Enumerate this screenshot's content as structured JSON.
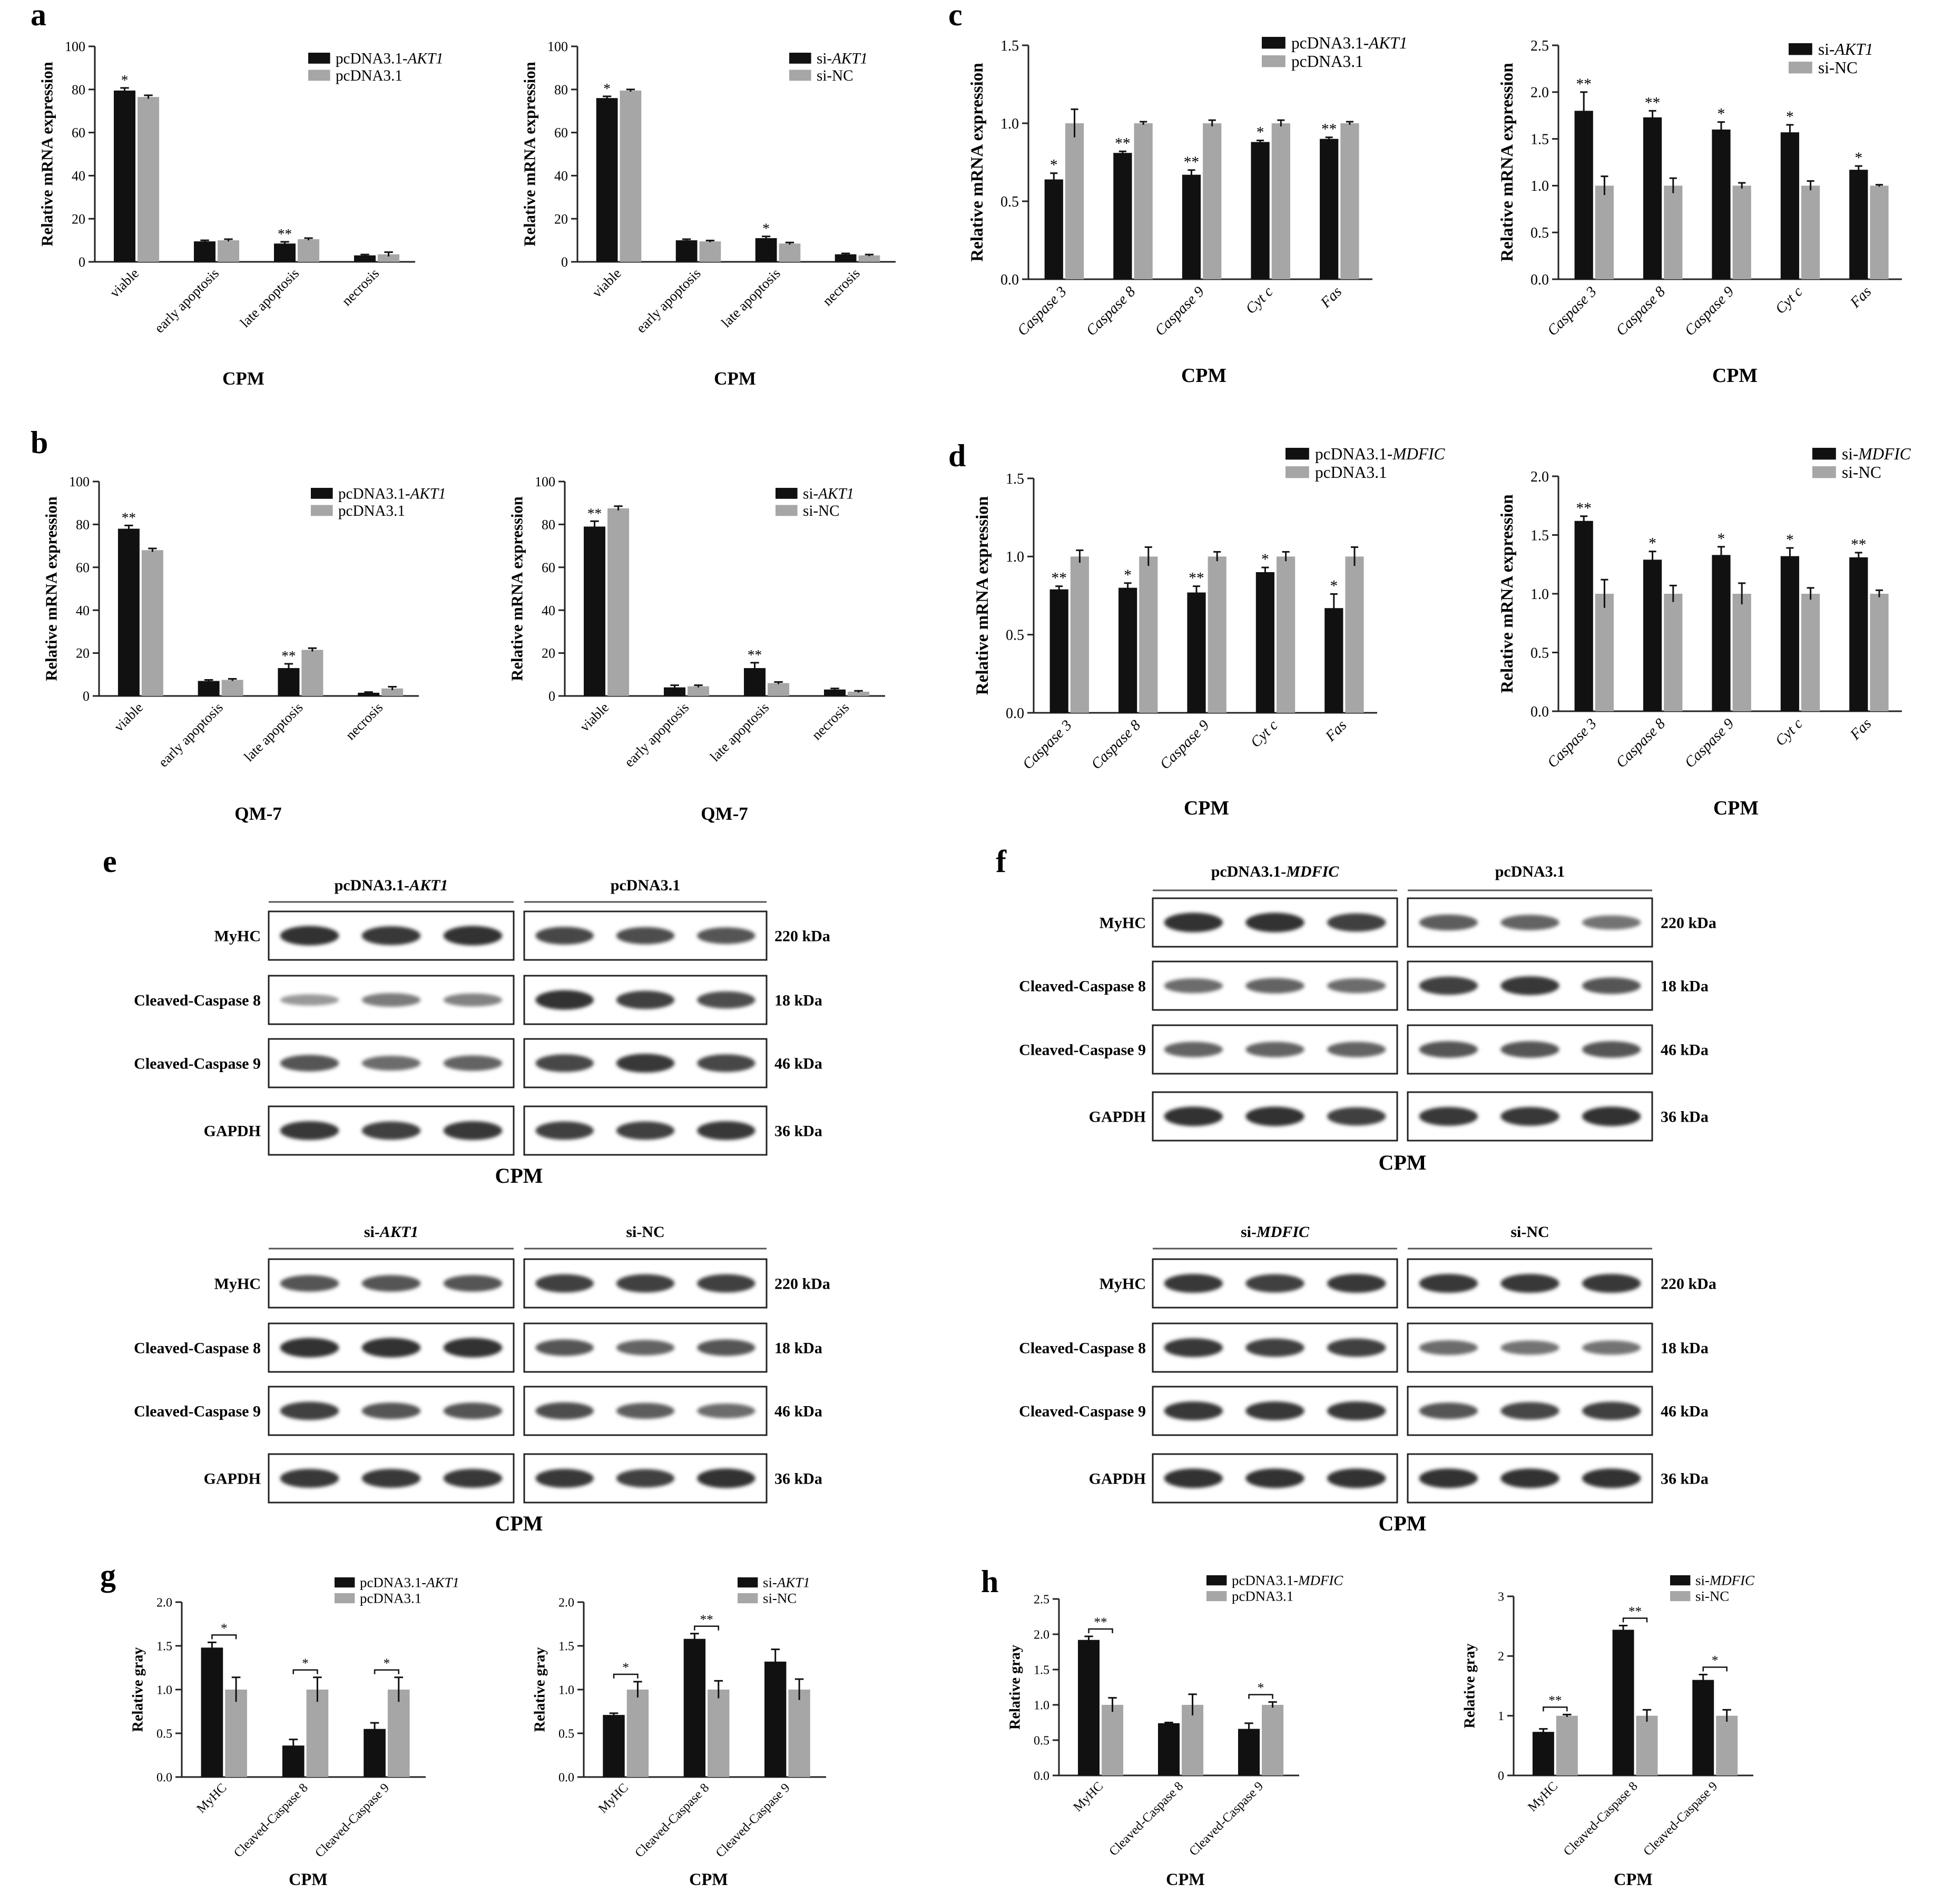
{
  "figure": {
    "panel_letters": [
      "a",
      "b",
      "c",
      "d",
      "e",
      "f",
      "g",
      "h"
    ]
  },
  "colors": {
    "black_series": "#111111",
    "gray_series": "#a6a6a6",
    "frame": "#222222"
  },
  "chart_data": [
    {
      "id": "a1",
      "panel": "a",
      "type": "bar",
      "categories": [
        "viable",
        "early apoptosis",
        "late apoptosis",
        "necrosis"
      ],
      "series": [
        {
          "name": "pcDNA3.1-AKT1",
          "values": [
            79.5,
            9.5,
            8.5,
            3
          ],
          "errors": [
            1.2,
            0.5,
            0.8,
            0.4
          ]
        },
        {
          "name": "pcDNA3.1",
          "values": [
            76.5,
            10,
            10.5,
            3.5
          ],
          "errors": [
            0.8,
            0.5,
            0.5,
            1.0
          ]
        }
      ],
      "sig": [
        "*",
        "",
        "**",
        ""
      ],
      "ylabel": "Relative mRNA expression",
      "xlabel": "CPM",
      "ylim": [
        0,
        100
      ],
      "yticks": [
        "0",
        "20",
        "40",
        "60",
        "80",
        "100"
      ]
    },
    {
      "id": "a2",
      "panel": "a",
      "type": "bar",
      "categories": [
        "viable",
        "early apoptosis",
        "late apoptosis",
        "necrosis"
      ],
      "series": [
        {
          "name": "si-AKT1",
          "values": [
            76,
            10,
            11,
            3.5
          ],
          "errors": [
            0.8,
            0.5,
            0.8,
            0.4
          ]
        },
        {
          "name": "si-NC",
          "values": [
            79.5,
            9.5,
            8.5,
            3
          ],
          "errors": [
            0.5,
            0.4,
            0.5,
            0.4
          ]
        }
      ],
      "sig": [
        "*",
        "",
        "*",
        ""
      ],
      "ylabel": "Relative mRNA expression",
      "xlabel": "CPM",
      "ylim": [
        0,
        100
      ],
      "yticks": [
        "0",
        "20",
        "40",
        "60",
        "80",
        "100"
      ]
    },
    {
      "id": "b1",
      "panel": "b",
      "type": "bar",
      "categories": [
        "viable",
        "early apoptosis",
        "late apoptosis",
        "necrosis"
      ],
      "series": [
        {
          "name": "pcDNA3.1-AKT1",
          "values": [
            78,
            7,
            13,
            1.5
          ],
          "errors": [
            1.5,
            0.5,
            2.0,
            0.3
          ]
        },
        {
          "name": "pcDNA3.1",
          "values": [
            68,
            7.5,
            21.5,
            3.5
          ],
          "errors": [
            0.8,
            0.5,
            0.8,
            0.8
          ]
        }
      ],
      "sig": [
        "**",
        "",
        "**",
        ""
      ],
      "ylabel": "Relative mRNA expression",
      "xlabel": "QM-7",
      "ylim": [
        0,
        100
      ],
      "yticks": [
        "0",
        "20",
        "40",
        "60",
        "80",
        "100"
      ]
    },
    {
      "id": "b2",
      "panel": "b",
      "type": "bar",
      "categories": [
        "viable",
        "early apoptosis",
        "late apoptosis",
        "necrosis"
      ],
      "series": [
        {
          "name": "si-AKT1",
          "values": [
            79,
            4,
            13,
            3
          ],
          "errors": [
            2.5,
            1.0,
            2.5,
            0.5
          ]
        },
        {
          "name": "si-NC",
          "values": [
            87.5,
            4.5,
            6,
            2
          ],
          "errors": [
            1.0,
            0.5,
            0.5,
            0.4
          ]
        }
      ],
      "sig": [
        "**",
        "",
        "**",
        ""
      ],
      "ylabel": "Relative mRNA expression",
      "xlabel": "QM-7",
      "ylim": [
        0,
        100
      ],
      "yticks": [
        "0",
        "20",
        "40",
        "60",
        "80",
        "100"
      ]
    },
    {
      "id": "c1",
      "panel": "c",
      "type": "bar",
      "categories": [
        "Caspase 3",
        "Caspase 8",
        "Caspase 9",
        "Cyt c",
        "Fas"
      ],
      "series": [
        {
          "name": "pcDNA3.1-AKT1",
          "values": [
            0.64,
            0.81,
            0.67,
            0.88,
            0.9
          ],
          "errors": [
            0.04,
            0.01,
            0.03,
            0.01,
            0.01
          ]
        },
        {
          "name": "pcDNA3.1",
          "values": [
            1.0,
            1.0,
            1.0,
            1.0,
            1.0
          ],
          "errors": [
            0.09,
            0.01,
            0.02,
            0.02,
            0.01
          ]
        }
      ],
      "sig": [
        "*",
        "**",
        "**",
        "*",
        "**"
      ],
      "ylabel": "Relative mRNA expression",
      "xlabel": "CPM",
      "ylim": [
        0,
        1.5
      ],
      "yticks": [
        "0.0",
        "0.5",
        "1.0",
        "1.5"
      ]
    },
    {
      "id": "c2",
      "panel": "c",
      "type": "bar",
      "categories": [
        "Caspase 3",
        "Caspase 8",
        "Caspase 9",
        "Cyt c",
        "Fas"
      ],
      "series": [
        {
          "name": "si-AKT1",
          "values": [
            1.8,
            1.73,
            1.6,
            1.57,
            1.17
          ],
          "errors": [
            0.2,
            0.07,
            0.08,
            0.08,
            0.04
          ]
        },
        {
          "name": "si-NC",
          "values": [
            1.0,
            1.0,
            1.0,
            1.0,
            1.0
          ],
          "errors": [
            0.1,
            0.08,
            0.03,
            0.05,
            0.01
          ]
        }
      ],
      "sig": [
        "**",
        "**",
        "*",
        "*",
        "*"
      ],
      "ylabel": "Relative mRNA expression",
      "xlabel": "CPM",
      "ylim": [
        0,
        2.5
      ],
      "yticks": [
        "0.0",
        "0.5",
        "1.0",
        "1.5",
        "2.0",
        "2.5"
      ]
    },
    {
      "id": "d1",
      "panel": "d",
      "type": "bar",
      "categories": [
        "Caspase 3",
        "Caspase 8",
        "Caspase 9",
        "Cyt c",
        "Fas"
      ],
      "series": [
        {
          "name": "pcDNA3.1-MDFIC",
          "values": [
            0.79,
            0.8,
            0.77,
            0.9,
            0.67
          ],
          "errors": [
            0.02,
            0.03,
            0.04,
            0.03,
            0.09
          ]
        },
        {
          "name": "pcDNA3.1",
          "values": [
            1.0,
            1.0,
            1.0,
            1.0,
            1.0
          ],
          "errors": [
            0.04,
            0.06,
            0.03,
            0.03,
            0.06
          ]
        }
      ],
      "sig": [
        "**",
        "*",
        "**",
        "*",
        "*"
      ],
      "ylabel": "Relative mRNA expression",
      "xlabel": "CPM",
      "ylim": [
        0,
        1.5
      ],
      "yticks": [
        "0.0",
        "0.5",
        "1.0",
        "1.5"
      ]
    },
    {
      "id": "d2",
      "panel": "d",
      "type": "bar",
      "categories": [
        "Caspase 3",
        "Caspase 8",
        "Caspase 9",
        "Cyt c",
        "Fas"
      ],
      "series": [
        {
          "name": "si-MDFIC",
          "values": [
            1.62,
            1.29,
            1.33,
            1.32,
            1.31
          ],
          "errors": [
            0.04,
            0.07,
            0.07,
            0.07,
            0.04
          ]
        },
        {
          "name": "si-NC",
          "values": [
            1.0,
            1.0,
            1.0,
            1.0,
            1.0
          ],
          "errors": [
            0.12,
            0.07,
            0.09,
            0.05,
            0.03
          ]
        }
      ],
      "sig": [
        "**",
        "*",
        "*",
        "*",
        "**"
      ],
      "ylabel": "Relative mRNA expression",
      "xlabel": "CPM",
      "ylim": [
        0,
        2.0
      ],
      "yticks": [
        "0.0",
        "0.5",
        "1.0",
        "1.5",
        "2.0"
      ]
    },
    {
      "id": "g1",
      "panel": "g",
      "type": "bar",
      "categories": [
        "MyHC",
        "Cleaved-Caspase 8",
        "Cleaved-Caspase 9"
      ],
      "series": [
        {
          "name": "pcDNA3.1-AKT1",
          "values": [
            1.48,
            0.36,
            0.55
          ],
          "errors": [
            0.06,
            0.07,
            0.07
          ]
        },
        {
          "name": "pcDNA3.1",
          "values": [
            1.0,
            1.0,
            1.0
          ],
          "errors": [
            0.14,
            0.14,
            0.14
          ]
        }
      ],
      "sig": [
        "*",
        "*",
        "*"
      ],
      "bracket": [
        true,
        true,
        true
      ],
      "ylabel": "Relative gray",
      "xlabel": "CPM",
      "ylim": [
        0,
        2.0
      ],
      "yticks": [
        "0.0",
        "0.5",
        "1.0",
        "1.5",
        "2.0"
      ]
    },
    {
      "id": "g2",
      "panel": "g",
      "type": "bar",
      "categories": [
        "MyHC",
        "Cleaved-Caspase 8",
        "Cleaved-Caspase 9"
      ],
      "series": [
        {
          "name": "si-AKT1",
          "values": [
            0.71,
            1.58,
            1.32
          ],
          "errors": [
            0.02,
            0.06,
            0.14
          ]
        },
        {
          "name": "si-NC",
          "values": [
            1.0,
            1.0,
            1.0
          ],
          "errors": [
            0.09,
            0.1,
            0.12
          ]
        }
      ],
      "sig": [
        "*",
        "**",
        ""
      ],
      "bracket": [
        true,
        true,
        false
      ],
      "ylabel": "Relative gray",
      "xlabel": "CPM",
      "ylim": [
        0,
        2.0
      ],
      "yticks": [
        "0.0",
        "0.5",
        "1.0",
        "1.5",
        "2.0"
      ]
    },
    {
      "id": "h1",
      "panel": "h",
      "type": "bar",
      "categories": [
        "MyHC",
        "Cleaved-Caspase 8",
        "Cleaved-Caspase 9"
      ],
      "series": [
        {
          "name": "pcDNA3.1-MDFIC",
          "values": [
            1.92,
            0.74,
            0.66
          ],
          "errors": [
            0.05,
            0.01,
            0.08
          ]
        },
        {
          "name": "pcDNA3.1",
          "values": [
            1.0,
            1.0,
            1.0
          ],
          "errors": [
            0.1,
            0.15,
            0.04
          ]
        }
      ],
      "sig": [
        "**",
        "",
        "*"
      ],
      "bracket": [
        true,
        false,
        true
      ],
      "ylabel": "Relative gray",
      "xlabel": "CPM",
      "ylim": [
        0,
        2.5
      ],
      "yticks": [
        "0.0",
        "0.5",
        "1.0",
        "1.5",
        "2.0",
        "2.5"
      ]
    },
    {
      "id": "h2",
      "panel": "h",
      "type": "bar",
      "categories": [
        "MyHC",
        "Cleaved-Caspase 8",
        "Cleaved-Caspase 9"
      ],
      "series": [
        {
          "name": "si-MDFIC",
          "values": [
            0.73,
            2.44,
            1.6
          ],
          "errors": [
            0.05,
            0.07,
            0.09
          ]
        },
        {
          "name": "si-NC",
          "values": [
            1.0,
            1.0,
            1.0
          ],
          "errors": [
            0.02,
            0.1,
            0.1
          ]
        }
      ],
      "sig": [
        "**",
        "**",
        "*"
      ],
      "bracket": [
        true,
        true,
        true
      ],
      "ylabel": "Relative gray",
      "xlabel": "CPM",
      "ylim": [
        0,
        3
      ],
      "yticks": [
        "0",
        "1",
        "2",
        "3"
      ]
    }
  ],
  "blots": [
    {
      "id": "e1",
      "panel": "e",
      "groups": [
        "pcDNA3.1-AKT1",
        "pcDNA3.1"
      ],
      "xlabel": "CPM",
      "rows": [
        {
          "label": "MyHC",
          "size": "220 kDa",
          "intensity": [
            0.95,
            0.9,
            0.95,
            0.8,
            0.75,
            0.7
          ]
        },
        {
          "label": "Cleaved-Caspase 8",
          "size": "18 kDa",
          "intensity": [
            0.25,
            0.45,
            0.4,
            0.95,
            0.85,
            0.75
          ]
        },
        {
          "label": "Cleaved-Caspase 9",
          "size": "46 kDa",
          "intensity": [
            0.7,
            0.55,
            0.6,
            0.8,
            0.9,
            0.8
          ]
        },
        {
          "label": "GAPDH",
          "size": "36 kDa",
          "intensity": [
            0.9,
            0.85,
            0.9,
            0.85,
            0.85,
            0.9
          ]
        }
      ]
    },
    {
      "id": "e2",
      "panel": "e",
      "groups": [
        "si-AKT1",
        "si-NC"
      ],
      "xlabel": "CPM",
      "rows": [
        {
          "label": "MyHC",
          "size": "220 kDa",
          "intensity": [
            0.7,
            0.7,
            0.7,
            0.85,
            0.85,
            0.85
          ]
        },
        {
          "label": "Cleaved-Caspase 8",
          "size": "18 kDa",
          "intensity": [
            0.95,
            0.95,
            0.95,
            0.7,
            0.6,
            0.7
          ]
        },
        {
          "label": "Cleaved-Caspase 9",
          "size": "46 kDa",
          "intensity": [
            0.85,
            0.7,
            0.7,
            0.75,
            0.65,
            0.55
          ]
        },
        {
          "label": "GAPDH",
          "size": "36 kDa",
          "intensity": [
            0.9,
            0.9,
            0.9,
            0.9,
            0.85,
            0.95
          ]
        }
      ]
    },
    {
      "id": "f1",
      "panel": "f",
      "groups": [
        "pcDNA3.1-MDFIC",
        "pcDNA3.1"
      ],
      "xlabel": "CPM",
      "rows": [
        {
          "label": "MyHC",
          "size": "220 kDa",
          "intensity": [
            0.95,
            0.95,
            0.85,
            0.65,
            0.6,
            0.5
          ]
        },
        {
          "label": "Cleaved-Caspase 8",
          "size": "18 kDa",
          "intensity": [
            0.55,
            0.6,
            0.55,
            0.85,
            0.9,
            0.7
          ]
        },
        {
          "label": "Cleaved-Caspase 9",
          "size": "46 kDa",
          "intensity": [
            0.6,
            0.6,
            0.6,
            0.7,
            0.7,
            0.7
          ]
        },
        {
          "label": "GAPDH",
          "size": "36 kDa",
          "intensity": [
            0.95,
            0.95,
            0.85,
            0.9,
            0.9,
            0.95
          ]
        }
      ]
    },
    {
      "id": "f2",
      "panel": "f",
      "groups": [
        "si-MDFIC",
        "si-NC"
      ],
      "xlabel": "CPM",
      "rows": [
        {
          "label": "MyHC",
          "size": "220 kDa",
          "intensity": [
            0.9,
            0.85,
            0.9,
            0.9,
            0.9,
            0.9
          ]
        },
        {
          "label": "Cleaved-Caspase 8",
          "size": "18 kDa",
          "intensity": [
            0.9,
            0.85,
            0.85,
            0.55,
            0.5,
            0.5
          ]
        },
        {
          "label": "Cleaved-Caspase 9",
          "size": "46 kDa",
          "intensity": [
            0.9,
            0.9,
            0.9,
            0.7,
            0.8,
            0.85
          ]
        },
        {
          "label": "GAPDH",
          "size": "36 kDa",
          "intensity": [
            0.95,
            0.95,
            0.95,
            0.95,
            0.95,
            0.95
          ]
        }
      ]
    }
  ]
}
